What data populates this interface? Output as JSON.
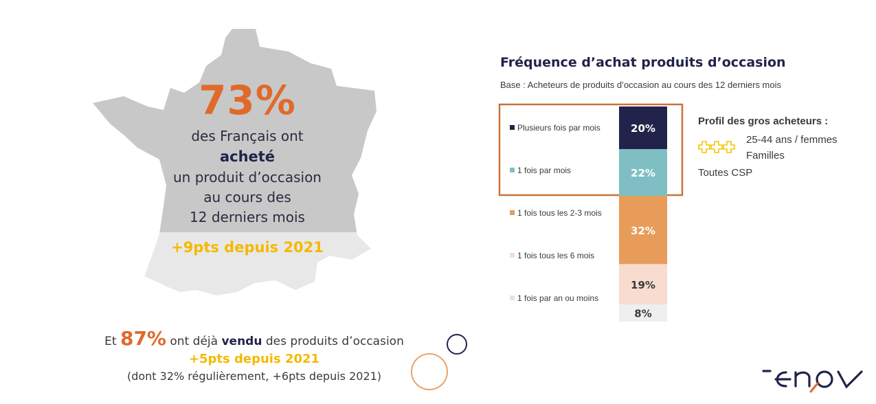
{
  "map_panel": {
    "percent": "73%",
    "line1": "des Français ont",
    "line2": "acheté",
    "line3": "un produit d’occasion",
    "line4": "au cours des",
    "line5": "12 derniers mois",
    "gain": "+9pts depuis 2021"
  },
  "sold": {
    "prefix": "Et",
    "percent": "87%",
    "middle": "ont déjà",
    "bold_word": "vendu",
    "suffix": "des produits d’occasion",
    "gain": "+5pts depuis 2021",
    "note": "(dont 32% régulièrement, +6pts depuis 2021)"
  },
  "chart_data": {
    "type": "bar",
    "title": "Fréquence d’achat produits d’occasion",
    "subtitle": "Base : Acheteurs de produits d’occasion au cours des 12 derniers mois",
    "categories": [
      "Plusieurs fois par mois",
      "1 fois par mois",
      "1 fois tous les 2-3 mois",
      "1 fois tous les 6 mois",
      "1 fois par an ou moins"
    ],
    "values": [
      20,
      22,
      32,
      19,
      8
    ],
    "value_labels": [
      "20%",
      "22%",
      "32%",
      "19%",
      "8%"
    ],
    "colors": [
      "#22234a",
      "#7fbfc4",
      "#e89c5a",
      "#f7dccf",
      "#efefef"
    ],
    "label_colors": [
      "#ffffff",
      "#ffffff",
      "#ffffff",
      "#3a3a3a",
      "#3a3a3a"
    ],
    "stacked": true,
    "highlight": "top-two"
  },
  "profile": {
    "title": "Profil des gros acheteurs :",
    "age": "25-44 ans / femmes",
    "family": "Familles",
    "csp": "Toutes CSP"
  },
  "colors": {
    "orange": "#e06a2b",
    "yellow": "#f5b800",
    "navy": "#22234a",
    "map_grey": "#c8c8c8",
    "map_light": "#e8e8e8"
  },
  "logo": {
    "icon": "enov-logo"
  }
}
